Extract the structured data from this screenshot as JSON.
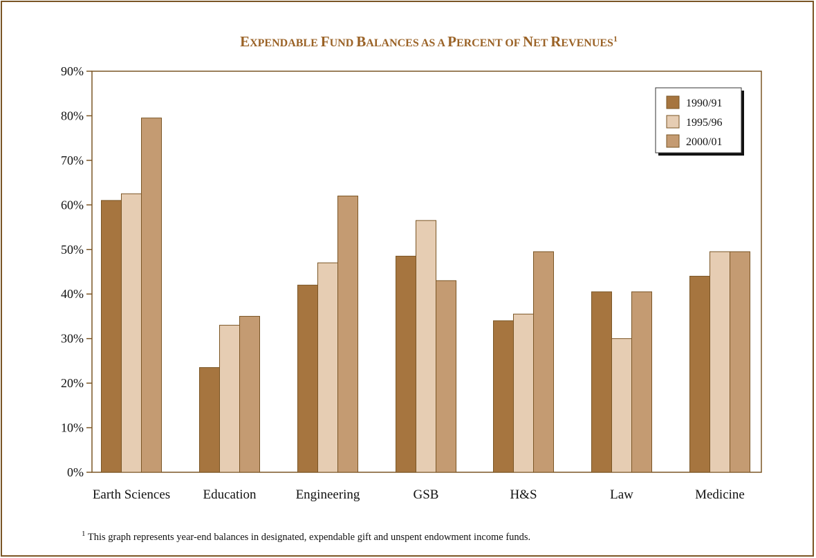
{
  "colors": {
    "border": "#7a5524",
    "title": "#9a6226",
    "axis": "#7a5524",
    "series_1": "#a6753f",
    "series_2": "#e6cdb3",
    "series_3": "#c49b72",
    "bar_edge": "#7a5524"
  },
  "chart_data": {
    "type": "bar",
    "title_parts": [
      {
        "text": "E",
        "style": "big"
      },
      {
        "text": "XPENDABLE ",
        "style": "small"
      },
      {
        "text": "F",
        "style": "big"
      },
      {
        "text": "UND ",
        "style": "small"
      },
      {
        "text": "B",
        "style": "big"
      },
      {
        "text": "ALANCES AS A ",
        "style": "small"
      },
      {
        "text": "P",
        "style": "big"
      },
      {
        "text": "ERCENT OF ",
        "style": "small"
      },
      {
        "text": "N",
        "style": "big"
      },
      {
        "text": "ET ",
        "style": "small"
      },
      {
        "text": "R",
        "style": "big"
      },
      {
        "text": "EVENUES",
        "style": "small"
      },
      {
        "text": "1",
        "style": "sup"
      }
    ],
    "categories": [
      "Earth Sciences",
      "Education",
      "Engineering",
      "GSB",
      "H&S",
      "Law",
      "Medicine"
    ],
    "series": [
      {
        "name": "1990/91",
        "values": [
          61,
          23.5,
          42,
          48.5,
          34,
          40.5,
          44
        ]
      },
      {
        "name": "1995/96",
        "values": [
          62.5,
          33,
          47,
          56.5,
          35.5,
          30,
          49.5
        ]
      },
      {
        "name": "2000/01",
        "values": [
          79.5,
          35,
          62,
          43,
          49.5,
          40.5,
          49.5
        ]
      }
    ],
    "y_ticks": [
      "0%",
      "10%",
      "20%",
      "30%",
      "40%",
      "50%",
      "60%",
      "70%",
      "80%",
      "90%"
    ],
    "ylim": [
      0,
      90
    ],
    "legend_position": "top-right",
    "grid": false
  },
  "footnote": {
    "marker": "1",
    "text": " This graph represents year-end balances in designated, expendable gift and unspent endowment income funds."
  }
}
